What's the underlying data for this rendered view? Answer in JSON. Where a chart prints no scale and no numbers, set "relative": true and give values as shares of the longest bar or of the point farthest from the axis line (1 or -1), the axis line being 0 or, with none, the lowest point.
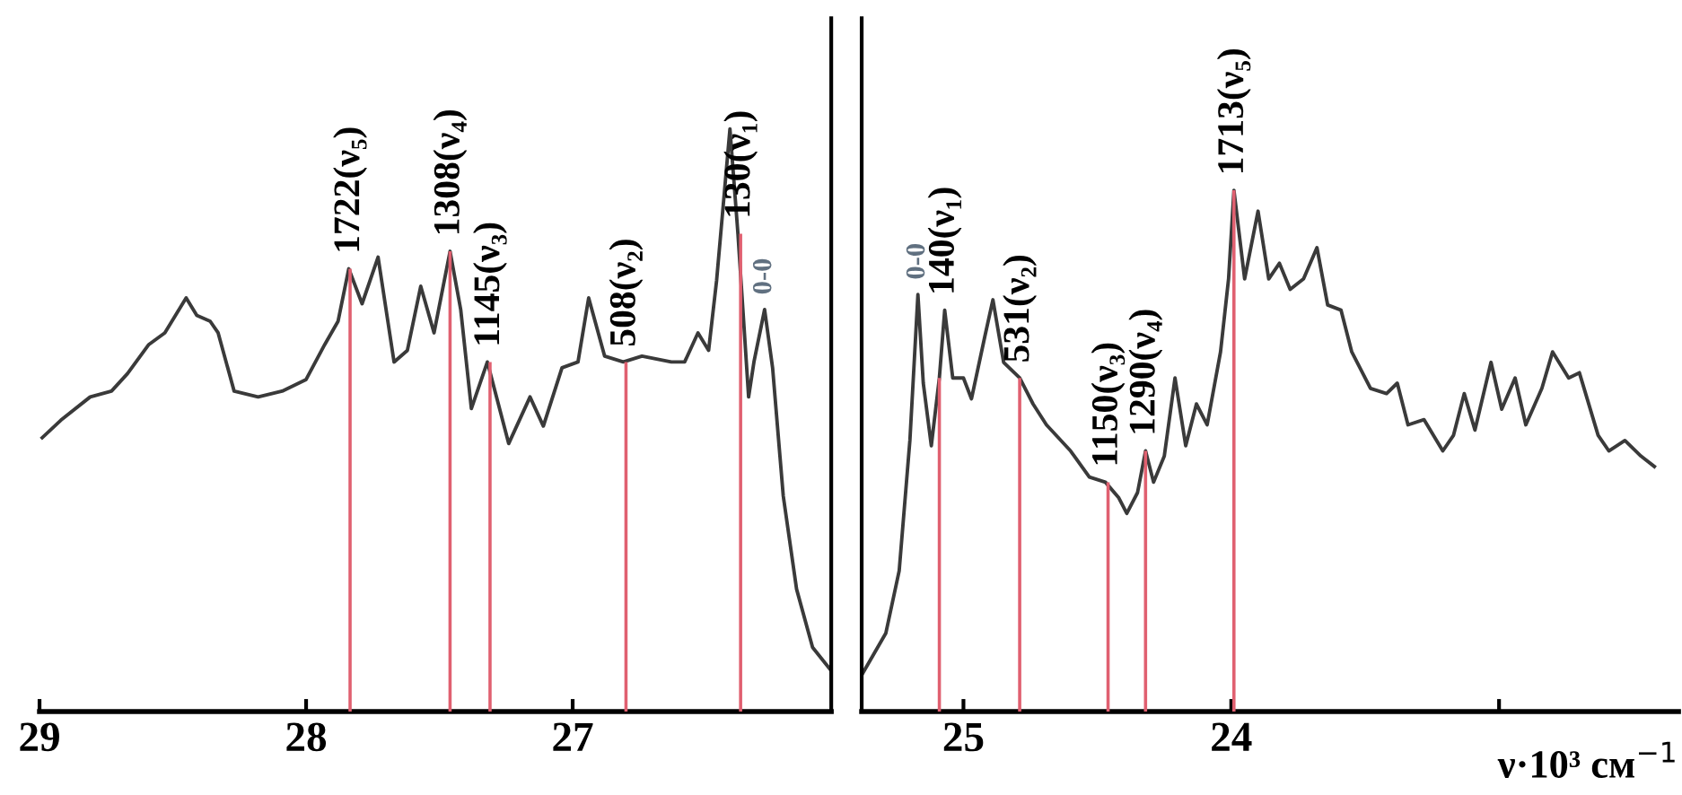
{
  "chart_data": [
    {
      "type": "line",
      "relative": true,
      "xlim": [
        29.0,
        26.03
      ],
      "xticks": [
        29,
        28,
        27
      ],
      "grid": false,
      "legend": false,
      "series": [
        {
          "color": "#3a3a3a",
          "x": [
            28.99,
            28.92,
            28.81,
            28.73,
            28.67,
            28.59,
            28.53,
            28.49,
            28.45,
            28.41,
            28.36,
            28.33,
            28.27,
            28.18,
            28.09,
            28.0,
            27.93,
            27.88,
            27.84,
            27.79,
            27.73,
            27.67,
            27.62,
            27.57,
            27.52,
            27.46,
            27.42,
            27.38,
            27.32,
            27.24,
            27.16,
            27.11,
            27.04,
            26.98,
            26.94,
            26.88,
            26.81,
            26.74,
            26.63,
            26.58,
            26.53,
            26.49,
            26.46,
            26.41,
            26.38,
            26.34,
            26.32,
            26.28,
            26.25,
            26.21,
            26.16,
            26.1,
            26.03
          ],
          "values": [
            0.47,
            0.5,
            0.54,
            0.55,
            0.58,
            0.63,
            0.65,
            0.68,
            0.71,
            0.68,
            0.67,
            0.65,
            0.55,
            0.54,
            0.55,
            0.57,
            0.63,
            0.67,
            0.76,
            0.7,
            0.78,
            0.6,
            0.62,
            0.73,
            0.65,
            0.79,
            0.69,
            0.52,
            0.6,
            0.46,
            0.54,
            0.49,
            0.59,
            0.6,
            0.71,
            0.61,
            0.6,
            0.61,
            0.6,
            0.6,
            0.65,
            0.62,
            0.74,
            1.0,
            0.82,
            0.54,
            0.6,
            0.69,
            0.59,
            0.37,
            0.21,
            0.11,
            0.07
          ]
        },
        {
          "type": "bar",
          "color": "#e06070",
          "x": [
            27.835,
            27.46,
            27.31,
            26.8,
            26.37
          ],
          "values": [
            0.76,
            0.79,
            0.6,
            0.6,
            0.82
          ]
        }
      ],
      "annotations": [
        {
          "text": "1722(ν₅)",
          "x": 27.835,
          "y": 0.76
        },
        {
          "text": "1308(ν₄)",
          "x": 27.46,
          "y": 0.79
        },
        {
          "text": "1145(ν₃)",
          "x": 27.31,
          "y": 0.6
        },
        {
          "text": "508(ν₂)",
          "x": 26.8,
          "y": 0.6
        },
        {
          "text": "130(ν₁)",
          "x": 26.37,
          "y": 0.82
        },
        {
          "text": "0-0",
          "x": 26.28,
          "y": 0.69
        }
      ]
    },
    {
      "type": "line",
      "relative": true,
      "xlim": [
        25.38,
        22.33
      ],
      "xticks": [
        25,
        24,
        {
          "value": 23,
          "label": null
        }
      ],
      "xlabel": "ν·10³ см$^{−1}$",
      "grid": false,
      "legend": false,
      "series": [
        {
          "color": "#3a3a3a",
          "x": [
            25.38,
            25.29,
            25.24,
            25.2,
            25.17,
            25.15,
            25.12,
            25.09,
            25.07,
            25.04,
            25.0,
            24.97,
            24.92,
            24.89,
            24.85,
            24.79,
            24.74,
            24.69,
            24.6,
            24.53,
            24.47,
            24.42,
            24.39,
            24.35,
            24.32,
            24.29,
            24.25,
            24.21,
            24.17,
            24.13,
            24.09,
            24.04,
            24.01,
            23.99,
            23.95,
            23.9,
            23.86,
            23.82,
            23.78,
            23.73,
            23.68,
            23.64,
            23.59,
            23.55,
            23.48,
            23.42,
            23.38,
            23.34,
            23.28,
            23.21,
            23.17,
            23.13,
            23.09,
            23.03,
            22.99,
            22.94,
            22.9,
            22.84,
            22.8,
            22.74,
            22.7,
            22.63,
            22.59,
            22.53,
            22.47,
            22.42
          ],
          "values": [
            0.07,
            0.15,
            0.27,
            0.52,
            0.8,
            0.63,
            0.51,
            0.64,
            0.77,
            0.64,
            0.64,
            0.6,
            0.72,
            0.79,
            0.67,
            0.64,
            0.59,
            0.55,
            0.5,
            0.45,
            0.44,
            0.41,
            0.38,
            0.42,
            0.5,
            0.44,
            0.49,
            0.64,
            0.51,
            0.59,
            0.55,
            0.69,
            0.83,
            1.0,
            0.83,
            0.96,
            0.83,
            0.86,
            0.81,
            0.83,
            0.89,
            0.78,
            0.77,
            0.69,
            0.62,
            0.61,
            0.63,
            0.55,
            0.56,
            0.5,
            0.53,
            0.61,
            0.54,
            0.67,
            0.58,
            0.64,
            0.55,
            0.62,
            0.69,
            0.64,
            0.65,
            0.53,
            0.5,
            0.52,
            0.49,
            0.47
          ]
        },
        {
          "type": "bar",
          "color": "#e06070",
          "x": [
            25.09,
            24.79,
            24.46,
            24.32,
            23.99
          ],
          "values": [
            0.64,
            0.64,
            0.44,
            0.5,
            1.0
          ]
        }
      ],
      "annotations": [
        {
          "text": "0-0",
          "x": 25.17,
          "y": 0.8
        },
        {
          "text": "140(ν₁)",
          "x": 25.07,
          "y": 0.77
        },
        {
          "text": "531(ν₂)",
          "x": 24.79,
          "y": 0.64
        },
        {
          "text": "1150(ν₃)",
          "x": 24.46,
          "y": 0.44
        },
        {
          "text": "1290(ν₄)",
          "x": 24.32,
          "y": 0.5
        },
        {
          "text": "1713(ν₅)",
          "x": 23.99,
          "y": 1.0
        }
      ]
    }
  ]
}
